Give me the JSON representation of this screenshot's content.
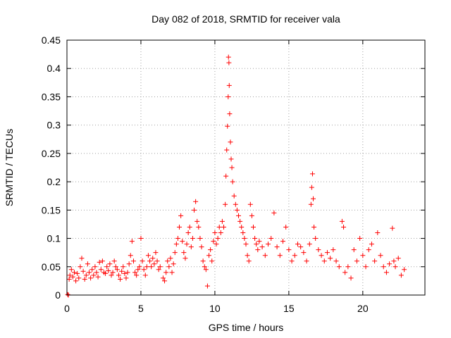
{
  "chart_data": {
    "type": "scatter",
    "title": "Day 082 of 2018, SRMTID for receiver vala",
    "xlabel": "GPS time / hours",
    "ylabel": "SRMTID / TECUs",
    "xlim": [
      0,
      24.2
    ],
    "ylim": [
      0,
      0.45
    ],
    "xticks": [
      0,
      5,
      10,
      15,
      20
    ],
    "xtick_labels": [
      "0",
      "5",
      "10",
      "15",
      "20"
    ],
    "yticks": [
      0,
      0.05,
      0.1,
      0.15,
      0.2,
      0.25,
      0.3,
      0.35,
      0.4,
      0.45
    ],
    "ytick_labels": [
      "0",
      "0.05",
      "0.1",
      "0.15",
      "0.2",
      "0.25",
      "0.3",
      "0.35",
      "0.4",
      "0.45"
    ],
    "grid": true,
    "marker": "+",
    "color": "#ff0000",
    "series": [
      {
        "name": "SRMTID",
        "points": [
          [
            0.05,
            0.001
          ],
          [
            0.1,
            0.0
          ],
          [
            0.15,
            0.028
          ],
          [
            0.2,
            0.035
          ],
          [
            0.3,
            0.045
          ],
          [
            0.4,
            0.032
          ],
          [
            0.5,
            0.04
          ],
          [
            0.6,
            0.025
          ],
          [
            0.7,
            0.038
          ],
          [
            0.8,
            0.03
          ],
          [
            0.9,
            0.05
          ],
          [
            1.0,
            0.065
          ],
          [
            1.1,
            0.042
          ],
          [
            1.2,
            0.028
          ],
          [
            1.3,
            0.035
          ],
          [
            1.4,
            0.055
          ],
          [
            1.5,
            0.04
          ],
          [
            1.6,
            0.03
          ],
          [
            1.7,
            0.045
          ],
          [
            1.8,
            0.035
          ],
          [
            1.9,
            0.05
          ],
          [
            2.0,
            0.04
          ],
          [
            2.1,
            0.032
          ],
          [
            2.2,
            0.058
          ],
          [
            2.3,
            0.045
          ],
          [
            2.4,
            0.06
          ],
          [
            2.5,
            0.04
          ],
          [
            2.6,
            0.038
          ],
          [
            2.7,
            0.05
          ],
          [
            2.8,
            0.043
          ],
          [
            2.9,
            0.055
          ],
          [
            3.0,
            0.035
          ],
          [
            3.1,
            0.04
          ],
          [
            3.2,
            0.06
          ],
          [
            3.3,
            0.05
          ],
          [
            3.4,
            0.045
          ],
          [
            3.5,
            0.035
          ],
          [
            3.6,
            0.028
          ],
          [
            3.7,
            0.042
          ],
          [
            3.8,
            0.05
          ],
          [
            3.9,
            0.038
          ],
          [
            4.0,
            0.03
          ],
          [
            4.1,
            0.04
          ],
          [
            4.2,
            0.055
          ],
          [
            4.3,
            0.07
          ],
          [
            4.4,
            0.095
          ],
          [
            4.5,
            0.06
          ],
          [
            4.6,
            0.04
          ],
          [
            4.7,
            0.035
          ],
          [
            4.8,
            0.045
          ],
          [
            4.9,
            0.05
          ],
          [
            5.0,
            0.1
          ],
          [
            5.1,
            0.06
          ],
          [
            5.2,
            0.045
          ],
          [
            5.3,
            0.035
          ],
          [
            5.4,
            0.05
          ],
          [
            5.5,
            0.07
          ],
          [
            5.6,
            0.06
          ],
          [
            5.7,
            0.05
          ],
          [
            5.8,
            0.065
          ],
          [
            5.9,
            0.055
          ],
          [
            6.0,
            0.075
          ],
          [
            6.1,
            0.06
          ],
          [
            6.2,
            0.045
          ],
          [
            6.3,
            0.05
          ],
          [
            6.5,
            0.03
          ],
          [
            6.6,
            0.025
          ],
          [
            6.7,
            0.04
          ],
          [
            6.8,
            0.06
          ],
          [
            6.9,
            0.05
          ],
          [
            7.0,
            0.065
          ],
          [
            7.1,
            0.04
          ],
          [
            7.2,
            0.055
          ],
          [
            7.3,
            0.075
          ],
          [
            7.4,
            0.09
          ],
          [
            7.5,
            0.1
          ],
          [
            7.6,
            0.12
          ],
          [
            7.7,
            0.14
          ],
          [
            7.8,
            0.095
          ],
          [
            7.9,
            0.075
          ],
          [
            8.0,
            0.065
          ],
          [
            8.1,
            0.09
          ],
          [
            8.2,
            0.11
          ],
          [
            8.3,
            0.12
          ],
          [
            8.4,
            0.085
          ],
          [
            8.5,
            0.1
          ],
          [
            8.6,
            0.15
          ],
          [
            8.7,
            0.165
          ],
          [
            8.8,
            0.13
          ],
          [
            8.9,
            0.12
          ],
          [
            9.0,
            0.1
          ],
          [
            9.1,
            0.085
          ],
          [
            9.2,
            0.06
          ],
          [
            9.3,
            0.05
          ],
          [
            9.4,
            0.045
          ],
          [
            9.5,
            0.016
          ],
          [
            9.6,
            0.07
          ],
          [
            9.7,
            0.08
          ],
          [
            9.8,
            0.06
          ],
          [
            9.9,
            0.095
          ],
          [
            10.0,
            0.11
          ],
          [
            10.1,
            0.09
          ],
          [
            10.2,
            0.1
          ],
          [
            10.3,
            0.12
          ],
          [
            10.4,
            0.11
          ],
          [
            10.5,
            0.13
          ],
          [
            10.6,
            0.12
          ],
          [
            10.7,
            0.16
          ],
          [
            10.75,
            0.21
          ],
          [
            10.8,
            0.256
          ],
          [
            10.85,
            0.298
          ],
          [
            10.9,
            0.35
          ],
          [
            10.92,
            0.42
          ],
          [
            10.95,
            0.41
          ],
          [
            10.97,
            0.37
          ],
          [
            11.0,
            0.32
          ],
          [
            11.05,
            0.27
          ],
          [
            11.1,
            0.24
          ],
          [
            11.15,
            0.225
          ],
          [
            11.2,
            0.2
          ],
          [
            11.3,
            0.175
          ],
          [
            11.4,
            0.16
          ],
          [
            11.5,
            0.15
          ],
          [
            11.6,
            0.14
          ],
          [
            11.7,
            0.13
          ],
          [
            11.8,
            0.12
          ],
          [
            11.9,
            0.11
          ],
          [
            12.0,
            0.1
          ],
          [
            12.1,
            0.09
          ],
          [
            12.2,
            0.07
          ],
          [
            12.3,
            0.06
          ],
          [
            12.4,
            0.16
          ],
          [
            12.5,
            0.14
          ],
          [
            12.6,
            0.12
          ],
          [
            12.7,
            0.1
          ],
          [
            12.8,
            0.09
          ],
          [
            12.9,
            0.08
          ],
          [
            13.0,
            0.095
          ],
          [
            13.2,
            0.085
          ],
          [
            13.4,
            0.07
          ],
          [
            13.6,
            0.09
          ],
          [
            13.8,
            0.1
          ],
          [
            14.0,
            0.145
          ],
          [
            14.2,
            0.085
          ],
          [
            14.4,
            0.07
          ],
          [
            14.6,
            0.095
          ],
          [
            14.8,
            0.12
          ],
          [
            15.0,
            0.08
          ],
          [
            15.2,
            0.06
          ],
          [
            15.4,
            0.07
          ],
          [
            15.6,
            0.09
          ],
          [
            15.8,
            0.085
          ],
          [
            16.0,
            0.075
          ],
          [
            16.2,
            0.06
          ],
          [
            16.4,
            0.09
          ],
          [
            16.5,
            0.16
          ],
          [
            16.55,
            0.19
          ],
          [
            16.6,
            0.214
          ],
          [
            16.65,
            0.17
          ],
          [
            16.7,
            0.12
          ],
          [
            16.8,
            0.1
          ],
          [
            17.0,
            0.08
          ],
          [
            17.2,
            0.07
          ],
          [
            17.4,
            0.06
          ],
          [
            17.6,
            0.075
          ],
          [
            17.8,
            0.065
          ],
          [
            18.0,
            0.08
          ],
          [
            18.2,
            0.06
          ],
          [
            18.4,
            0.05
          ],
          [
            18.6,
            0.13
          ],
          [
            18.7,
            0.12
          ],
          [
            18.8,
            0.04
          ],
          [
            19.0,
            0.05
          ],
          [
            19.2,
            0.03
          ],
          [
            19.4,
            0.08
          ],
          [
            19.6,
            0.06
          ],
          [
            19.8,
            0.1
          ],
          [
            20.0,
            0.07
          ],
          [
            20.2,
            0.05
          ],
          [
            20.4,
            0.08
          ],
          [
            20.6,
            0.09
          ],
          [
            20.8,
            0.06
          ],
          [
            21.0,
            0.11
          ],
          [
            21.2,
            0.07
          ],
          [
            21.4,
            0.05
          ],
          [
            21.6,
            0.04
          ],
          [
            21.8,
            0.055
          ],
          [
            22.0,
            0.118
          ],
          [
            22.1,
            0.06
          ],
          [
            22.2,
            0.05
          ],
          [
            22.4,
            0.065
          ],
          [
            22.6,
            0.035
          ],
          [
            22.8,
            0.045
          ]
        ]
      }
    ]
  }
}
